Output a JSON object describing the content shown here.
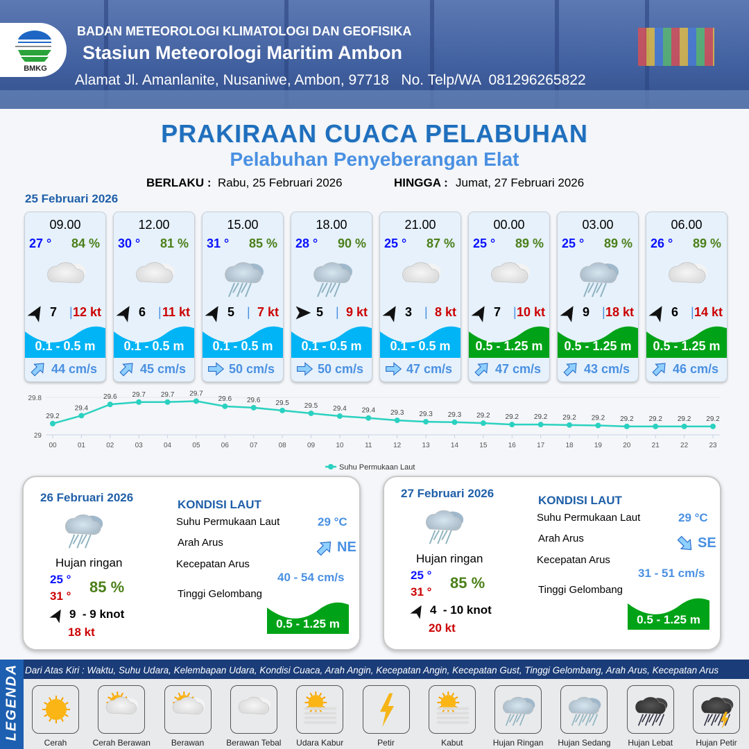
{
  "header": {
    "agency": "BADAN METEOROLOGI KLIMATOLOGI DAN GEOFISIKA",
    "station": "Stasiun Meteorologi Maritim Ambon",
    "address": "Alamat Jl. Amanlanite, Nusaniwe, Ambon, 97718   No. Telp/WA  081296265822",
    "logo_text": "BMKG"
  },
  "title": "PRAKIRAAN CUACA PELABUHAN",
  "subtitle": "Pelabuhan Penyeberangan Elat",
  "validity": {
    "from_label": "BERLAKU :",
    "from": "Rabu, 25 Februari 2026",
    "to_label": "HINGGA :",
    "to": "Jumat, 27 Februari 2026"
  },
  "day1": {
    "date": "25 Februari 2026"
  },
  "colors": {
    "wave_low": "#00b4f5",
    "wave_mid": "#00a317",
    "temp": "#0a12ff",
    "humidity": "#4b7f19",
    "gust": "#cc0000",
    "current": "#4a90e2",
    "chart_line": "#2bd1c0"
  },
  "cards": [
    {
      "time": "09.00",
      "temp": "27 °",
      "hum": "84 %",
      "weather": "berawan-tebal",
      "wind_dir_deg": -60,
      "wind": "7",
      "gust": "12 kt",
      "wave": "0.1 - 0.5 m",
      "wave_level": "low",
      "cur_dir_deg": -45,
      "cur": "44 cm/s"
    },
    {
      "time": "12.00",
      "temp": "30 °",
      "hum": "81 %",
      "weather": "berawan-tebal",
      "wind_dir_deg": -60,
      "wind": "6",
      "gust": "11 kt",
      "wave": "0.1 - 0.5 m",
      "wave_level": "low",
      "cur_dir_deg": -45,
      "cur": "45 cm/s"
    },
    {
      "time": "15.00",
      "temp": "31 °",
      "hum": "85 %",
      "weather": "hujan-ringan",
      "wind_dir_deg": -60,
      "wind": "5",
      "gust": "7 kt",
      "wave": "0.1 - 0.5 m",
      "wave_level": "low",
      "cur_dir_deg": 0,
      "cur": "50 cm/s"
    },
    {
      "time": "18.00",
      "temp": "28 °",
      "hum": "90 %",
      "weather": "hujan-ringan",
      "wind_dir_deg": 0,
      "wind": "5",
      "gust": "9 kt",
      "wave": "0.1 - 0.5 m",
      "wave_level": "low",
      "cur_dir_deg": 0,
      "cur": "50 cm/s"
    },
    {
      "time": "21.00",
      "temp": "25 °",
      "hum": "87 %",
      "weather": "berawan-tebal",
      "wind_dir_deg": -60,
      "wind": "3",
      "gust": "8 kt",
      "wave": "0.1 - 0.5 m",
      "wave_level": "low",
      "cur_dir_deg": 0,
      "cur": "47 cm/s"
    },
    {
      "time": "00.00",
      "temp": "25 °",
      "hum": "89 %",
      "weather": "berawan-tebal",
      "wind_dir_deg": -60,
      "wind": "7",
      "gust": "10 kt",
      "wave": "0.5 - 1.25 m",
      "wave_level": "mid",
      "cur_dir_deg": -45,
      "cur": "47 cm/s"
    },
    {
      "time": "03.00",
      "temp": "25 °",
      "hum": "89 %",
      "weather": "hujan-ringan",
      "wind_dir_deg": -60,
      "wind": "9",
      "gust": "18 kt",
      "wave": "0.5 - 1.25 m",
      "wave_level": "mid",
      "cur_dir_deg": -45,
      "cur": "43 cm/s"
    },
    {
      "time": "06.00",
      "temp": "26 °",
      "hum": "89 %",
      "weather": "berawan-tebal",
      "wind_dir_deg": -60,
      "wind": "6",
      "gust": "14 kt",
      "wave": "0.5 - 1.25 m",
      "wave_level": "mid",
      "cur_dir_deg": -45,
      "cur": "46 cm/s"
    }
  ],
  "chart_data": {
    "type": "line",
    "x": [
      "00",
      "01",
      "02",
      "03",
      "04",
      "05",
      "06",
      "07",
      "08",
      "09",
      "10",
      "11",
      "12",
      "13",
      "14",
      "15",
      "16",
      "17",
      "18",
      "19",
      "20",
      "21",
      "22",
      "23"
    ],
    "series": [
      {
        "name": "Suhu Permukaan Laut",
        "values": [
          29.24,
          29.41,
          29.65,
          29.7,
          29.7,
          29.72,
          29.61,
          29.58,
          29.52,
          29.46,
          29.4,
          29.36,
          29.31,
          29.28,
          29.27,
          29.25,
          29.22,
          29.22,
          29.21,
          29.2,
          29.18,
          29.18,
          29.18,
          29.18
        ],
        "labels": [
          "29.2",
          "29.4",
          "29.6",
          "29.7",
          "29.7",
          "29.7",
          "29.6",
          "29.6",
          "29.5",
          "29.5",
          "29.4",
          "29.4",
          "29.3",
          "29.3",
          "29.3",
          "29.2",
          "29.2",
          "29.2",
          "29.2",
          "29.2",
          "29.2",
          "29.2",
          "29.2",
          "29.2"
        ]
      }
    ],
    "yticks": [
      "29",
      "29.8"
    ],
    "ylim": [
      29,
      29.8
    ],
    "grid": true,
    "legend": "bottom-center"
  },
  "days": [
    {
      "date": "26 Februari 2026",
      "weather": "hujan-ringan",
      "desc": "Hujan ringan",
      "tmin": "25 °",
      "tmax": "31 °",
      "hum": "85 %",
      "wind_dir_deg": -60,
      "wind": "9  - 9 knot",
      "gust": "18 kt",
      "sea": {
        "title": "KONDISI LAUT",
        "sst_label": "Suhu Permukaan Laut",
        "sst": "29 °C",
        "dir_label": "Arah Arus",
        "dir": "NE",
        "dir_deg": -45,
        "speed_label": "Kecepatan Arus",
        "speed": "40 - 54 cm/s",
        "wave_label": "Tinggi Gelombang",
        "wave": "0.5 - 1.25 m"
      }
    },
    {
      "date": "27 Februari 2026",
      "weather": "hujan-ringan",
      "desc": "Hujan ringan",
      "tmin": "25 °",
      "tmax": "31 °",
      "hum": "85 %",
      "wind_dir_deg": -60,
      "wind": "4  - 10 knot",
      "gust": "20 kt",
      "sea": {
        "title": "KONDISI LAUT",
        "sst_label": "Suhu Permukaan Laut",
        "sst": "29 °C",
        "dir_label": "Arah Arus",
        "dir": "SE",
        "dir_deg": 45,
        "speed_label": "Kecepatan Arus",
        "speed": "31 - 51 cm/s",
        "wave_label": "Tinggi Gelombang",
        "wave": "0.5 - 1.25 m"
      }
    }
  ],
  "legend": {
    "title": "LEGENDA",
    "description": "Dari Atas Kiri : Waktu, Suhu Udara, Kelembapan Udara, Kondisi Cuaca, Arah Angin, Kecepatan Angin, Kecepatan Gust, Tinggi Gelombang, Arah Arus, Kecepatan Arus",
    "items": [
      {
        "label": "Cerah",
        "icon": "cerah"
      },
      {
        "label": "Cerah Berawan",
        "icon": "cerah-berawan"
      },
      {
        "label": "Berawan",
        "icon": "berawan"
      },
      {
        "label": "Berawan Tebal",
        "icon": "berawan-tebal"
      },
      {
        "label": "Udara Kabur",
        "icon": "udara-kabur"
      },
      {
        "label": "Petir",
        "icon": "petir"
      },
      {
        "label": "Kabut",
        "icon": "kabut"
      },
      {
        "label": "Hujan Ringan",
        "icon": "hujan-ringan"
      },
      {
        "label": "Hujan Sedang",
        "icon": "hujan-sedang"
      },
      {
        "label": "Hujan Lebat",
        "icon": "hujan-lebat"
      },
      {
        "label": "Hujan Petir",
        "icon": "hujan-petir"
      }
    ]
  }
}
